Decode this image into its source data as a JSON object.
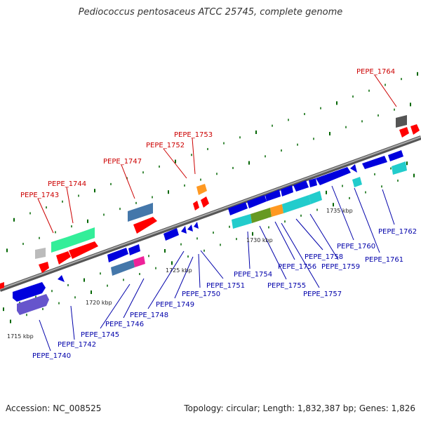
{
  "title": "Pediococcus pentosaceus ATCC 25745, complete genome",
  "footer": {
    "accession": "Accession: NC_008525",
    "summary": "Topology: circular; Length: 1,832,387 bp; Genes: 1,826"
  },
  "scale_labels": [
    "1715 kbp",
    "1720 kbp",
    "1725 kbp",
    "1730 kbp",
    "1735 kbp"
  ],
  "colors": {
    "forward_label": "#cc0000",
    "reverse_label": "#0000aa",
    "backbone": "#888888"
  },
  "forward_genes": [
    "PEPE_1743",
    "PEPE_1744",
    "PEPE_1747",
    "PEPE_1752",
    "PEPE_1753",
    "PEPE_1764"
  ],
  "reverse_genes": [
    "PEPE_1740",
    "PEPE_1742",
    "PEPE_1745",
    "PEPE_1746",
    "PEPE_1748",
    "PEPE_1749",
    "PEPE_1750",
    "PEPE_1751",
    "PEPE_1754",
    "PEPE_1755",
    "PEPE_1756",
    "PEPE_1757",
    "PEPE_1758",
    "PEPE_1759",
    "PEPE_1760",
    "PEPE_1761",
    "PEPE_1762"
  ]
}
